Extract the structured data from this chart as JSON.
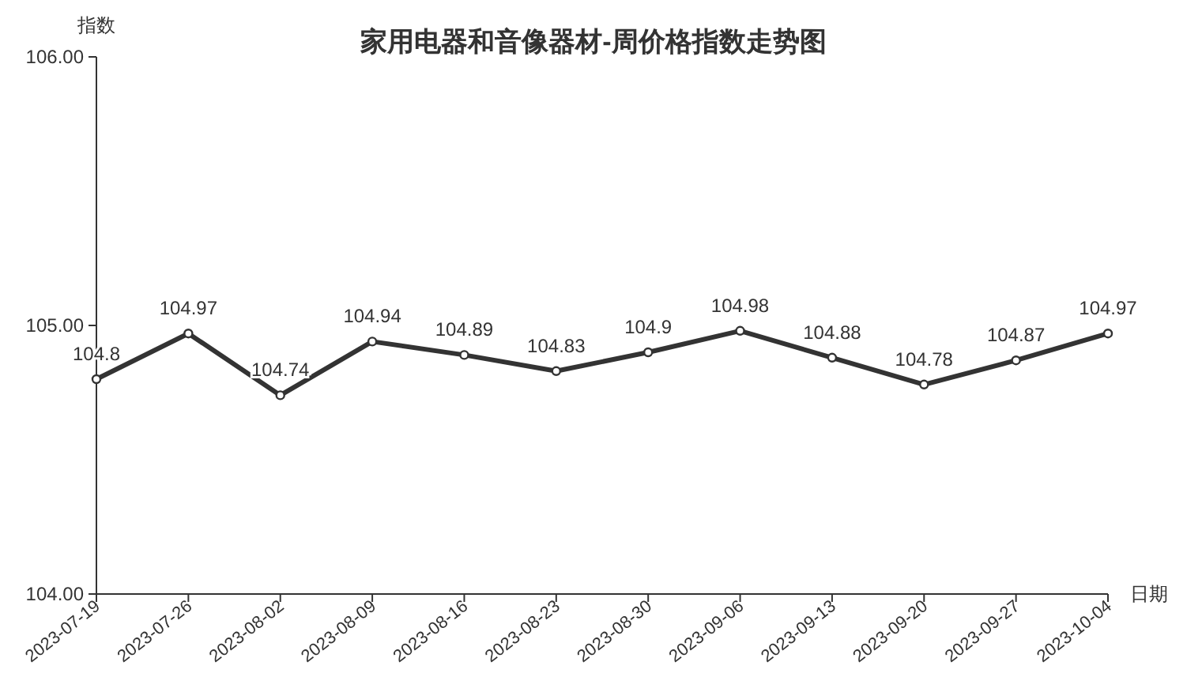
{
  "chart_data": {
    "type": "line",
    "title": "家用电器和音像器材-周价格指数走势图",
    "xlabel": "日期",
    "ylabel": "指数",
    "categories": [
      "2023-07-19",
      "2023-07-26",
      "2023-08-02",
      "2023-08-09",
      "2023-08-16",
      "2023-08-23",
      "2023-08-30",
      "2023-09-06",
      "2023-09-13",
      "2023-09-20",
      "2023-09-27",
      "2023-10-04"
    ],
    "series": [
      {
        "color": "#333333",
        "values": [
          104.8,
          104.97,
          104.74,
          104.94,
          104.89,
          104.83,
          104.9,
          104.98,
          104.88,
          104.78,
          104.87,
          104.97
        ]
      }
    ],
    "ylim": [
      104,
      106
    ],
    "yticks": [
      {
        "value": 104,
        "label": "104.00"
      },
      {
        "value": 105,
        "label": "105.00"
      },
      {
        "value": 106,
        "label": "106.00"
      }
    ],
    "data_labels": true,
    "marker": "circle",
    "line_style": "solid",
    "grid": false
  }
}
